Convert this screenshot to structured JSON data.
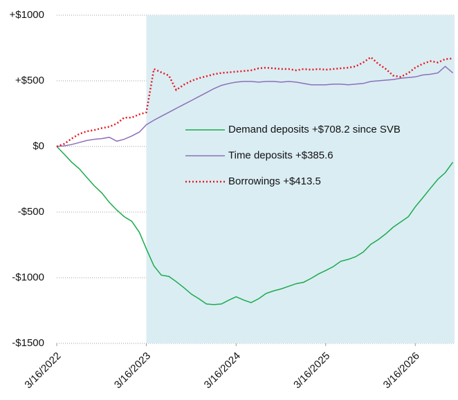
{
  "chart_data": {
    "type": "line",
    "x": [
      "3/16/2022",
      "4/16/2022",
      "5/16/2022",
      "6/16/2022",
      "7/16/2022",
      "8/16/2022",
      "9/16/2022",
      "10/16/2022",
      "11/16/2022",
      "12/16/2022",
      "1/16/2023",
      "2/16/2023",
      "3/16/2023",
      "4/16/2023",
      "5/16/2023",
      "6/16/2023",
      "7/16/2023",
      "8/16/2023",
      "9/16/2023",
      "10/16/2023",
      "11/16/2023",
      "12/16/2023",
      "1/16/2024",
      "2/16/2024",
      "3/16/2024",
      "4/16/2024",
      "5/16/2024",
      "6/16/2024",
      "7/16/2024",
      "8/16/2024",
      "9/16/2024",
      "10/16/2024",
      "11/16/2024",
      "12/16/2024",
      "1/16/2025",
      "2/16/2025",
      "3/16/2025",
      "4/16/2025",
      "5/16/2025",
      "6/16/2025",
      "7/16/2025",
      "8/16/2025",
      "9/16/2025",
      "10/16/2025",
      "11/16/2025",
      "12/16/2025",
      "1/16/2026",
      "2/16/2026",
      "3/16/2026",
      "4/16/2026",
      "5/16/2026",
      "6/16/2026",
      "7/16/2026",
      "8/16/2026"
    ],
    "series": [
      {
        "name": "Demand deposits +$708.2 since SVB",
        "color": "#1aaa4a",
        "dash": "solid",
        "values": [
          0,
          -60,
          -120,
          -170,
          -235,
          -300,
          -355,
          -425,
          -485,
          -535,
          -570,
          -655,
          -780,
          -910,
          -980,
          -990,
          -1030,
          -1075,
          -1125,
          -1160,
          -1200,
          -1205,
          -1200,
          -1170,
          -1145,
          -1170,
          -1190,
          -1160,
          -1120,
          -1100,
          -1085,
          -1065,
          -1045,
          -1035,
          -1005,
          -970,
          -945,
          -915,
          -875,
          -860,
          -840,
          -805,
          -745,
          -710,
          -665,
          -615,
          -575,
          -535,
          -460,
          -390,
          -320,
          -250,
          -200,
          -120
        ]
      },
      {
        "name": "Time deposits +$385.6",
        "color": "#8b6fb8",
        "dash": "solid",
        "values": [
          0,
          5,
          15,
          30,
          45,
          55,
          60,
          70,
          40,
          55,
          80,
          110,
          165,
          200,
          230,
          260,
          290,
          320,
          350,
          380,
          410,
          440,
          465,
          480,
          490,
          495,
          495,
          490,
          495,
          495,
          490,
          495,
          490,
          480,
          470,
          470,
          470,
          475,
          475,
          470,
          475,
          480,
          495,
          500,
          505,
          510,
          520,
          525,
          530,
          545,
          550,
          560,
          610,
          560
        ]
      },
      {
        "name": "Borrowings +$413.5",
        "color": "#e8141c",
        "dash": "dotted",
        "values": [
          0,
          20,
          60,
          95,
          115,
          125,
          140,
          150,
          175,
          220,
          220,
          245,
          260,
          590,
          565,
          540,
          430,
          470,
          500,
          520,
          535,
          550,
          560,
          565,
          570,
          575,
          580,
          595,
          600,
          595,
          590,
          590,
          580,
          590,
          585,
          590,
          585,
          590,
          595,
          600,
          610,
          640,
          680,
          630,
          590,
          540,
          530,
          560,
          600,
          630,
          650,
          640,
          665,
          670
        ]
      }
    ],
    "xlim": [
      "3/16/2022",
      "8/23/2026"
    ],
    "xticks": [
      "3/16/2022",
      "3/16/2023",
      "3/16/2024",
      "3/16/2025",
      "3/16/2026"
    ],
    "ylim": [
      -1500,
      1000
    ],
    "yticks": [
      {
        "value": 1000,
        "label": "+$1000"
      },
      {
        "value": 500,
        "label": "+$500"
      },
      {
        "value": 0,
        "label": "$0"
      },
      {
        "value": -500,
        "label": "-$500"
      },
      {
        "value": -1000,
        "label": "-$1000"
      },
      {
        "value": -1500,
        "label": "-$1500"
      }
    ],
    "shaded_region": [
      "3/16/2023",
      "8/23/2026"
    ],
    "shade_color": "#daedf3",
    "grid": true,
    "legend": "center"
  }
}
